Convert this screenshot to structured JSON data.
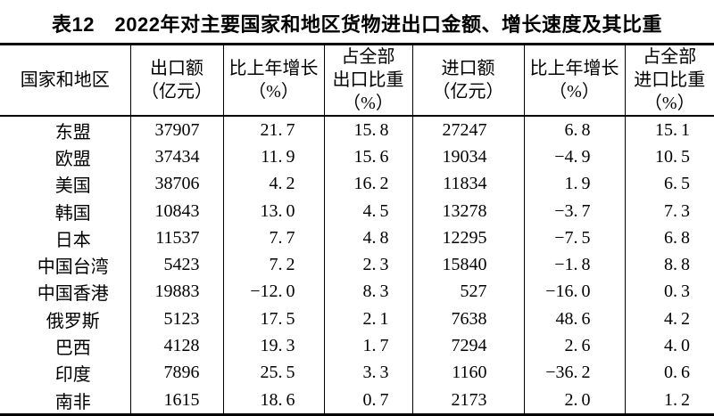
{
  "title": "表12　2022年对主要国家和地区货物进出口金额、增长速度及其比重",
  "colors": {
    "text": "#000000",
    "background": "#ffffff",
    "border": "#000000"
  },
  "table": {
    "columns": [
      {
        "id": "region",
        "lines": [
          "国家和地区"
        ]
      },
      {
        "id": "export_value",
        "lines": [
          "出口额",
          "（亿元）"
        ]
      },
      {
        "id": "export_growth",
        "lines": [
          "比上年增长",
          "（%）"
        ]
      },
      {
        "id": "export_share",
        "lines": [
          "占全部",
          "出口比重",
          "（%）"
        ]
      },
      {
        "id": "import_value",
        "lines": [
          "进口额",
          "（亿元）"
        ]
      },
      {
        "id": "import_growth",
        "lines": [
          "比上年增长",
          "（%）"
        ]
      },
      {
        "id": "import_share",
        "lines": [
          "占全部",
          "进口比重",
          "（%）"
        ]
      }
    ],
    "rows": [
      {
        "region": "东盟",
        "export_value": "37907",
        "export_growth": "21.7",
        "export_share": "15.8",
        "import_value": "27247",
        "import_growth": "6.8",
        "import_share": "15.1"
      },
      {
        "region": "欧盟",
        "export_value": "37434",
        "export_growth": "11.9",
        "export_share": "15.6",
        "import_value": "19034",
        "import_growth": "-4.9",
        "import_share": "10.5"
      },
      {
        "region": "美国",
        "export_value": "38706",
        "export_growth": "4.2",
        "export_share": "16.2",
        "import_value": "11834",
        "import_growth": "1.9",
        "import_share": "6.5"
      },
      {
        "region": "韩国",
        "export_value": "10843",
        "export_growth": "13.0",
        "export_share": "4.5",
        "import_value": "13278",
        "import_growth": "-3.7",
        "import_share": "7.3"
      },
      {
        "region": "日本",
        "export_value": "11537",
        "export_growth": "7.7",
        "export_share": "4.8",
        "import_value": "12295",
        "import_growth": "-7.5",
        "import_share": "6.8"
      },
      {
        "region": "中国台湾",
        "export_value": "5423",
        "export_growth": "7.2",
        "export_share": "2.3",
        "import_value": "15840",
        "import_growth": "-1.8",
        "import_share": "8.8"
      },
      {
        "region": "中国香港",
        "export_value": "19883",
        "export_growth": "-12.0",
        "export_share": "8.3",
        "import_value": "527",
        "import_growth": "-16.0",
        "import_share": "0.3"
      },
      {
        "region": "俄罗斯",
        "export_value": "5123",
        "export_growth": "17.5",
        "export_share": "2.1",
        "import_value": "7638",
        "import_growth": "48.6",
        "import_share": "4.2"
      },
      {
        "region": "巴西",
        "export_value": "4128",
        "export_growth": "19.3",
        "export_share": "1.7",
        "import_value": "7294",
        "import_growth": "2.6",
        "import_share": "4.0"
      },
      {
        "region": "印度",
        "export_value": "7896",
        "export_growth": "25.5",
        "export_share": "3.3",
        "import_value": "1160",
        "import_growth": "-36.2",
        "import_share": "0.6"
      },
      {
        "region": "南非",
        "export_value": "1615",
        "export_growth": "18.6",
        "export_share": "0.7",
        "import_value": "2173",
        "import_growth": "2.0",
        "import_share": "1.2"
      }
    ]
  }
}
